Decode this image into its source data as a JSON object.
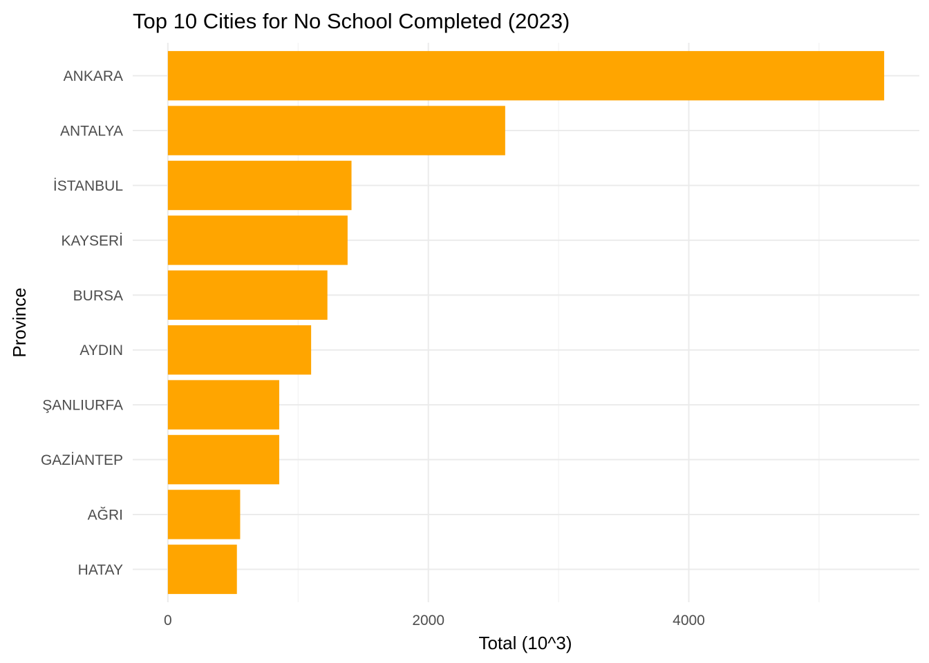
{
  "chart_data": {
    "type": "bar",
    "orientation": "horizontal",
    "title": "Top 10 Cities for No School Completed (2023)",
    "xlabel": "Total (10^3)",
    "ylabel": "Province",
    "categories": [
      "ANKARA",
      "ANTALYA",
      "İSTANBUL",
      "KAYSERİ",
      "BURSA",
      "AYDIN",
      "ŞANLIURFA",
      "GAZİANTEP",
      "AĞRI",
      "HATAY"
    ],
    "values": [
      5500,
      2590,
      1410,
      1380,
      1225,
      1100,
      855,
      855,
      555,
      530
    ],
    "xlim": [
      -270,
      5770
    ],
    "xticks": [
      0,
      2000,
      4000
    ],
    "xtick_labels": [
      "0",
      "2000",
      "4000"
    ],
    "xminor": [
      1000,
      3000,
      5000
    ],
    "bar_color": "#FFA500",
    "grid": true,
    "legend": "none"
  }
}
